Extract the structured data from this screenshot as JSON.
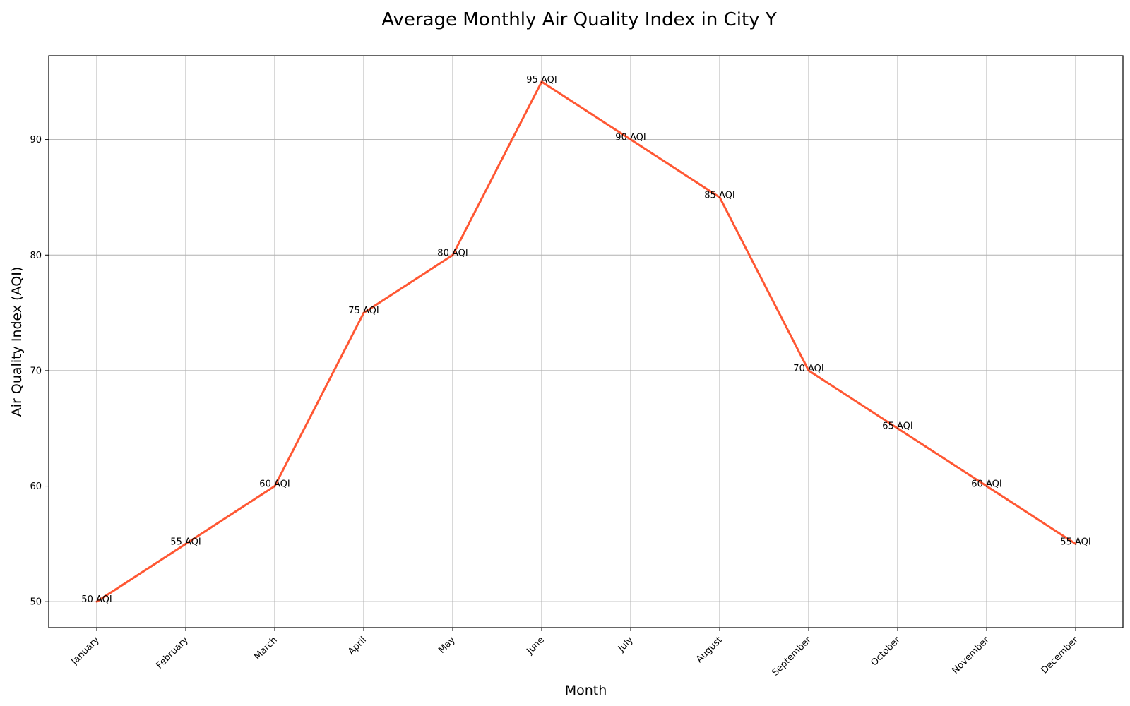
{
  "chart_data": {
    "type": "line",
    "title": "Average Monthly Air Quality Index in City Y",
    "xlabel": "Month",
    "ylabel": "Air Quality Index (AQI)",
    "categories": [
      "January",
      "February",
      "March",
      "April",
      "May",
      "June",
      "July",
      "August",
      "September",
      "October",
      "November",
      "December"
    ],
    "series": [
      {
        "values": [
          50,
          55,
          60,
          75,
          80,
          95,
          90,
          85,
          70,
          65,
          60,
          55
        ],
        "color": "#ff5733"
      }
    ],
    "data_labels": [
      "50 AQI",
      "55 AQI",
      "60 AQI",
      "75 AQI",
      "80 AQI",
      "95 AQI",
      "90 AQI",
      "85 AQI",
      "70 AQI",
      "65 AQI",
      "60 AQI",
      "55 AQI"
    ],
    "yticks": [
      50,
      60,
      70,
      80,
      90
    ],
    "ylim": [
      47.75,
      97.25
    ],
    "grid": true,
    "xtick_rotation": 45
  }
}
